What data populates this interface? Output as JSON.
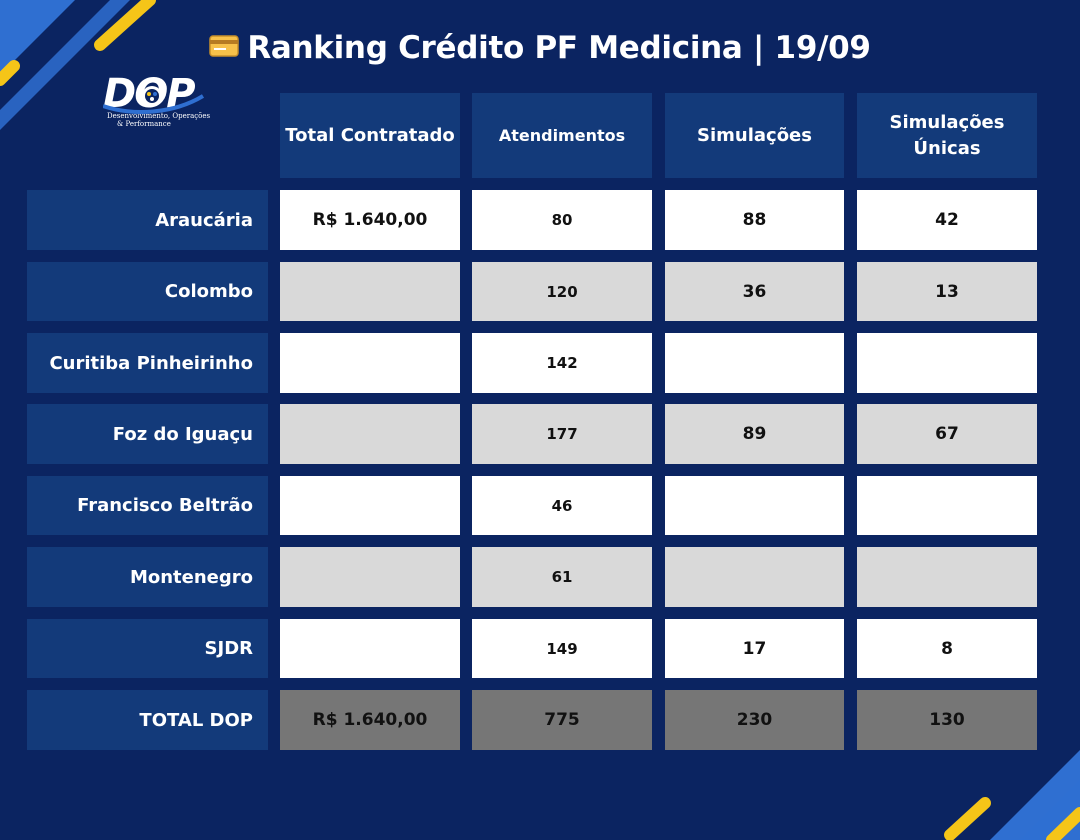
{
  "title": "Ranking Crédito PF Medicina | 19/09",
  "title_icon": "credit-card-icon",
  "logo": {
    "text": "DOP",
    "subtitle_line1": "Desenvolvimento, Operações",
    "subtitle_line2": "& Performance"
  },
  "colors": {
    "background": "#0b2461",
    "header": "#133a7a",
    "row_white": "#ffffff",
    "row_grey": "#d9d9d9",
    "total_row": "#767676",
    "accent_yellow": "#f5c518",
    "accent_blue": "#2f6fd1"
  },
  "table": {
    "headers": [
      "Total Contratado",
      "Atendimentos",
      "Simulações",
      "Simulações Únicas"
    ],
    "rows": [
      {
        "label": "Araucária",
        "total_contratado": "R$ 1.640,00",
        "atendimentos": "80",
        "simulacoes": "88",
        "simulacoes_unicas": "42"
      },
      {
        "label": "Colombo",
        "total_contratado": "",
        "atendimentos": "120",
        "simulacoes": "36",
        "simulacoes_unicas": "13"
      },
      {
        "label": "Curitiba Pinheirinho",
        "total_contratado": "",
        "atendimentos": "142",
        "simulacoes": "",
        "simulacoes_unicas": ""
      },
      {
        "label": "Foz do Iguaçu",
        "total_contratado": "",
        "atendimentos": "177",
        "simulacoes": "89",
        "simulacoes_unicas": "67"
      },
      {
        "label": "Francisco Beltrão",
        "total_contratado": "",
        "atendimentos": "46",
        "simulacoes": "",
        "simulacoes_unicas": ""
      },
      {
        "label": "Montenegro",
        "total_contratado": "",
        "atendimentos": "61",
        "simulacoes": "",
        "simulacoes_unicas": ""
      },
      {
        "label": "SJDR",
        "total_contratado": "",
        "atendimentos": "149",
        "simulacoes": "17",
        "simulacoes_unicas": "8"
      }
    ],
    "total": {
      "label": "TOTAL DOP",
      "total_contratado": "R$ 1.640,00",
      "atendimentos": "775",
      "simulacoes": "230",
      "simulacoes_unicas": "130"
    }
  }
}
